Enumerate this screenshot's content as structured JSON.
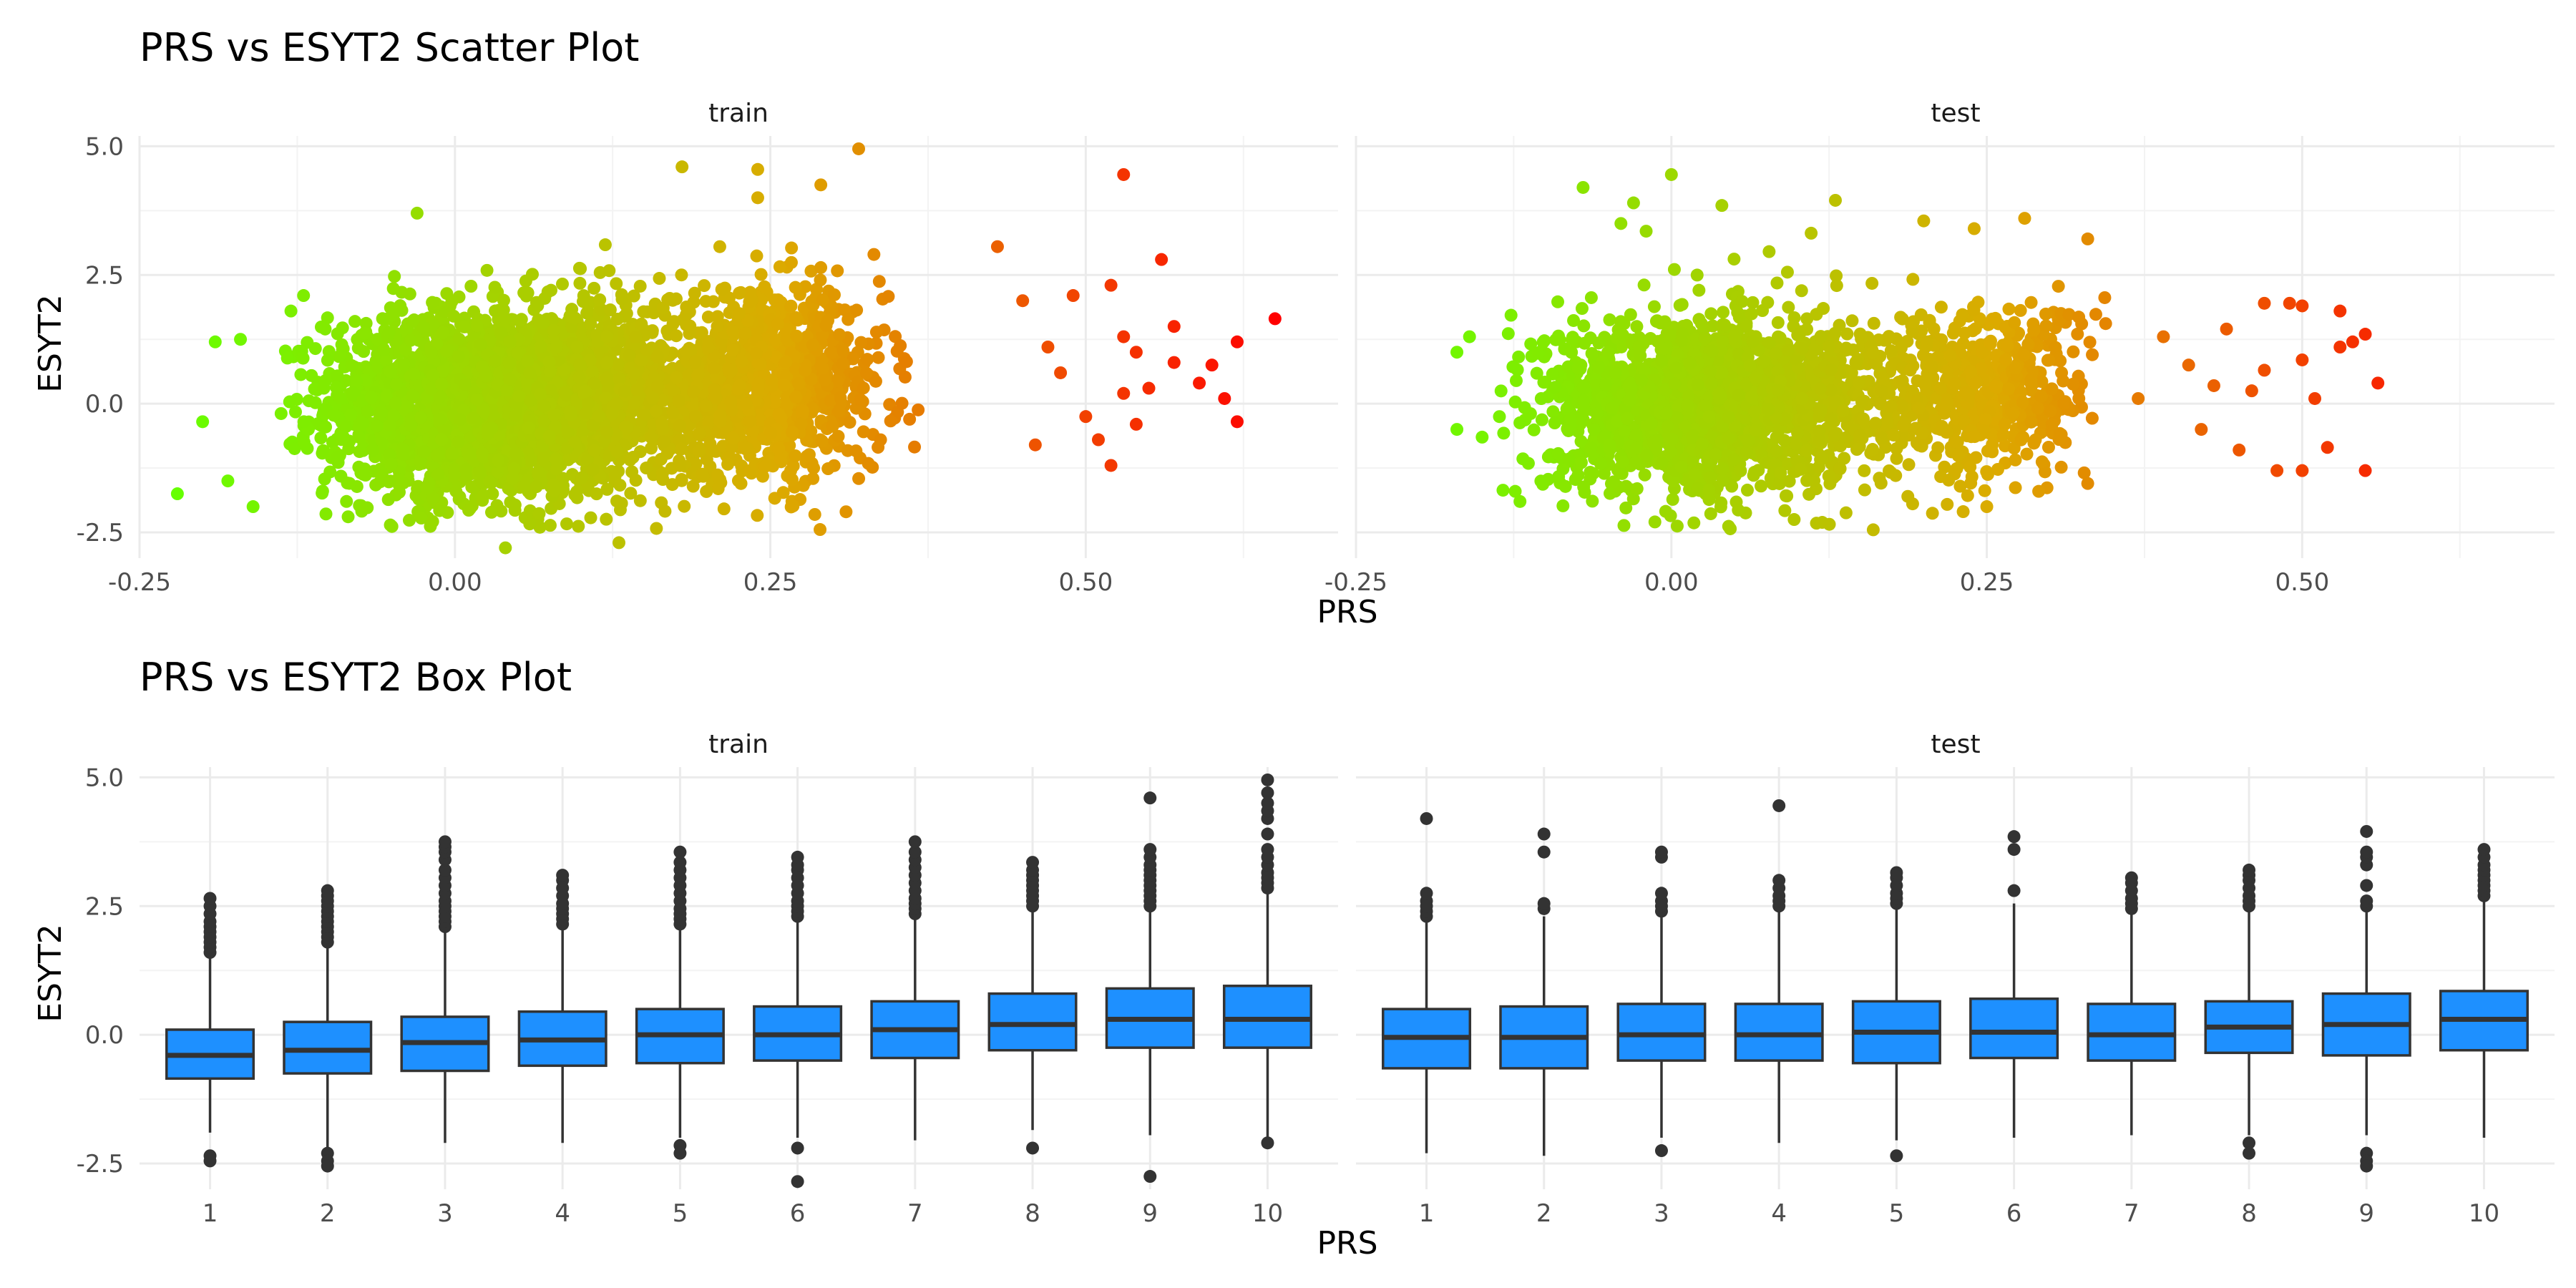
{
  "colors": {
    "low": "#66ff00",
    "high": "#ff0000",
    "box_fill": "#1e90ff",
    "box_line": "#333333",
    "outlier": "#333333"
  },
  "chart_data": [
    {
      "type": "scatter",
      "title": "PRS vs ESYT2 Scatter Plot",
      "xlabel": "PRS",
      "ylabel": "ESYT2",
      "xlim": [
        -0.25,
        0.7
      ],
      "ylim": [
        -3.0,
        5.2
      ],
      "x_ticks": [
        -0.25,
        0.0,
        0.25,
        0.5
      ],
      "x_tick_labels": [
        "-0.25",
        "0.00",
        "0.25",
        "0.50"
      ],
      "y_ticks": [
        -2.5,
        0.0,
        2.5,
        5.0
      ],
      "y_tick_labels": [
        "-2.5",
        "0.0",
        "2.5",
        "5.0"
      ],
      "color_by": "x",
      "color_range": [
        -0.22,
        0.65
      ],
      "facets": [
        {
          "label": "train",
          "cloud": [
            {
              "x_mean": 0.02,
              "x_sd": 0.06,
              "y_mean": 0.0,
              "y_sd": 0.9,
              "n": 2400
            },
            {
              "x_mean": 0.25,
              "x_sd": 0.045,
              "y_mean": 0.35,
              "y_sd": 0.9,
              "n": 900
            },
            {
              "x_mean": 0.13,
              "x_sd": 0.05,
              "y_mean": 0.15,
              "y_sd": 0.9,
              "n": 700
            }
          ],
          "points": [
            {
              "x": -0.22,
              "y": -1.75
            },
            {
              "x": -0.2,
              "y": -0.35
            },
            {
              "x": -0.19,
              "y": 1.2
            },
            {
              "x": -0.18,
              "y": -1.5
            },
            {
              "x": -0.17,
              "y": 1.25
            },
            {
              "x": -0.16,
              "y": -2.0
            },
            {
              "x": -0.13,
              "y": 1.8
            },
            {
              "x": -0.12,
              "y": 2.1
            },
            {
              "x": -0.03,
              "y": 3.7
            },
            {
              "x": 0.04,
              "y": -2.8
            },
            {
              "x": 0.13,
              "y": -2.7
            },
            {
              "x": 0.18,
              "y": 4.6
            },
            {
              "x": 0.24,
              "y": 4.55
            },
            {
              "x": 0.24,
              "y": 4.0
            },
            {
              "x": 0.29,
              "y": 4.25
            },
            {
              "x": 0.32,
              "y": 4.95
            },
            {
              "x": 0.31,
              "y": -2.1
            },
            {
              "x": 0.43,
              "y": 3.05
            },
            {
              "x": 0.45,
              "y": 2.0
            },
            {
              "x": 0.49,
              "y": 2.1
            },
            {
              "x": 0.52,
              "y": 2.3
            },
            {
              "x": 0.53,
              "y": 1.3
            },
            {
              "x": 0.54,
              "y": 1.0
            },
            {
              "x": 0.51,
              "y": -0.7
            },
            {
              "x": 0.52,
              "y": -1.2
            },
            {
              "x": 0.54,
              "y": -0.4
            },
            {
              "x": 0.53,
              "y": 0.2
            },
            {
              "x": 0.55,
              "y": 0.3
            },
            {
              "x": 0.57,
              "y": 1.5
            },
            {
              "x": 0.57,
              "y": 0.8
            },
            {
              "x": 0.56,
              "y": 2.8
            },
            {
              "x": 0.59,
              "y": 0.4
            },
            {
              "x": 0.53,
              "y": 4.45
            },
            {
              "x": 0.6,
              "y": 0.75
            },
            {
              "x": 0.61,
              "y": 0.1
            },
            {
              "x": 0.62,
              "y": -0.35
            },
            {
              "x": 0.62,
              "y": 1.2
            },
            {
              "x": 0.65,
              "y": 1.65
            },
            {
              "x": 0.48,
              "y": 0.6
            },
            {
              "x": 0.5,
              "y": -0.25
            },
            {
              "x": 0.47,
              "y": 1.1
            },
            {
              "x": 0.46,
              "y": -0.8
            }
          ]
        },
        {
          "label": "test",
          "cloud": [
            {
              "x_mean": 0.01,
              "x_sd": 0.055,
              "y_mean": 0.0,
              "y_sd": 0.85,
              "n": 1500
            },
            {
              "x_mean": 0.25,
              "x_sd": 0.04,
              "y_mean": 0.25,
              "y_sd": 0.85,
              "n": 500
            },
            {
              "x_mean": 0.13,
              "x_sd": 0.045,
              "y_mean": 0.1,
              "y_sd": 0.85,
              "n": 400
            }
          ],
          "points": [
            {
              "x": -0.17,
              "y": 1.0
            },
            {
              "x": -0.16,
              "y": 1.3
            },
            {
              "x": -0.17,
              "y": -0.5
            },
            {
              "x": -0.15,
              "y": -0.65
            },
            {
              "x": -0.12,
              "y": -1.9
            },
            {
              "x": -0.07,
              "y": 4.2
            },
            {
              "x": -0.03,
              "y": 3.9
            },
            {
              "x": -0.04,
              "y": 3.5
            },
            {
              "x": -0.02,
              "y": 3.35
            },
            {
              "x": -0.0,
              "y": 4.45
            },
            {
              "x": 0.04,
              "y": 3.85
            },
            {
              "x": 0.13,
              "y": 3.95
            },
            {
              "x": 0.16,
              "y": -2.45
            },
            {
              "x": 0.2,
              "y": 3.55
            },
            {
              "x": 0.24,
              "y": 3.4
            },
            {
              "x": 0.28,
              "y": 3.6
            },
            {
              "x": 0.33,
              "y": 3.2
            },
            {
              "x": 0.25,
              "y": -2.0
            },
            {
              "x": 0.33,
              "y": -1.55
            },
            {
              "x": 0.39,
              "y": 1.3
            },
            {
              "x": 0.41,
              "y": 0.75
            },
            {
              "x": 0.43,
              "y": 0.35
            },
            {
              "x": 0.44,
              "y": 1.45
            },
            {
              "x": 0.45,
              "y": -0.9
            },
            {
              "x": 0.47,
              "y": 1.95
            },
            {
              "x": 0.47,
              "y": 0.65
            },
            {
              "x": 0.48,
              "y": -1.3
            },
            {
              "x": 0.49,
              "y": 1.95
            },
            {
              "x": 0.5,
              "y": -1.3
            },
            {
              "x": 0.5,
              "y": 0.85
            },
            {
              "x": 0.5,
              "y": 1.9
            },
            {
              "x": 0.51,
              "y": 0.1
            },
            {
              "x": 0.52,
              "y": -0.85
            },
            {
              "x": 0.53,
              "y": 1.1
            },
            {
              "x": 0.53,
              "y": 1.8
            },
            {
              "x": 0.54,
              "y": 1.2
            },
            {
              "x": 0.55,
              "y": 1.35
            },
            {
              "x": 0.55,
              "y": -1.3
            },
            {
              "x": 0.56,
              "y": 0.4
            },
            {
              "x": 0.46,
              "y": 0.25
            },
            {
              "x": 0.42,
              "y": -0.5
            },
            {
              "x": 0.37,
              "y": 0.1
            }
          ]
        }
      ]
    },
    {
      "type": "box",
      "title": "PRS vs ESYT2 Box Plot",
      "xlabel": "PRS",
      "ylabel": "ESYT2",
      "ylim": [
        -3.0,
        5.2
      ],
      "y_ticks": [
        -2.5,
        0.0,
        2.5,
        5.0
      ],
      "y_tick_labels": [
        "-2.5",
        "0.0",
        "2.5",
        "5.0"
      ],
      "categories": [
        "1",
        "2",
        "3",
        "4",
        "5",
        "6",
        "7",
        "8",
        "9",
        "10"
      ],
      "facets": [
        {
          "label": "train",
          "boxes": [
            {
              "lower": -1.9,
              "q1": -0.85,
              "median": -0.4,
              "q3": 0.1,
              "upper": 1.55,
              "outliers": [
                1.6,
                1.7,
                1.8,
                1.9,
                2.0,
                2.1,
                2.2,
                2.35,
                2.5,
                2.65,
                -2.35,
                -2.45
              ]
            },
            {
              "lower": -2.2,
              "q1": -0.75,
              "median": -0.3,
              "q3": 0.25,
              "upper": 1.7,
              "outliers": [
                1.8,
                1.9,
                2.0,
                2.1,
                2.2,
                2.3,
                2.4,
                2.5,
                2.6,
                2.7,
                2.8,
                -2.3,
                -2.45,
                -2.55
              ]
            },
            {
              "lower": -2.1,
              "q1": -0.7,
              "median": -0.15,
              "q3": 0.35,
              "upper": 2.0,
              "outliers": [
                2.1,
                2.2,
                2.3,
                2.4,
                2.5,
                2.6,
                2.75,
                2.9,
                3.05,
                3.2,
                3.4,
                3.55,
                3.65,
                3.75
              ]
            },
            {
              "lower": -2.1,
              "q1": -0.6,
              "median": -0.1,
              "q3": 0.45,
              "upper": 2.1,
              "outliers": [
                2.15,
                2.25,
                2.35,
                2.45,
                2.55,
                2.7,
                2.85,
                3.0,
                3.1
              ]
            },
            {
              "lower": -2.0,
              "q1": -0.55,
              "median": 0.0,
              "q3": 0.5,
              "upper": 2.1,
              "outliers": [
                2.15,
                2.25,
                2.35,
                2.45,
                2.6,
                2.75,
                2.9,
                3.05,
                3.2,
                3.35,
                3.55,
                -2.15,
                -2.3
              ]
            },
            {
              "lower": -2.0,
              "q1": -0.5,
              "median": 0.0,
              "q3": 0.55,
              "upper": 2.2,
              "outliers": [
                2.3,
                2.4,
                2.5,
                2.6,
                2.75,
                2.9,
                3.05,
                3.2,
                3.3,
                3.45,
                -2.2,
                -2.85
              ]
            },
            {
              "lower": -2.05,
              "q1": -0.45,
              "median": 0.1,
              "q3": 0.65,
              "upper": 2.3,
              "outliers": [
                2.35,
                2.45,
                2.55,
                2.65,
                2.8,
                2.95,
                3.1,
                3.25,
                3.4,
                3.55,
                3.75
              ]
            },
            {
              "lower": -1.85,
              "q1": -0.3,
              "median": 0.2,
              "q3": 0.8,
              "upper": 2.4,
              "outliers": [
                2.5,
                2.6,
                2.7,
                2.8,
                2.9,
                3.0,
                3.1,
                3.2,
                3.35,
                -2.2
              ]
            },
            {
              "lower": -1.95,
              "q1": -0.25,
              "median": 0.3,
              "q3": 0.9,
              "upper": 2.4,
              "outliers": [
                2.5,
                2.6,
                2.7,
                2.8,
                2.9,
                3.0,
                3.1,
                3.2,
                3.3,
                3.45,
                3.6,
                4.6,
                -2.75
              ]
            },
            {
              "lower": -2.0,
              "q1": -0.25,
              "median": 0.3,
              "q3": 0.95,
              "upper": 2.8,
              "outliers": [
                2.85,
                2.95,
                3.05,
                3.15,
                3.3,
                3.45,
                3.6,
                3.9,
                4.2,
                4.35,
                4.5,
                4.7,
                4.95,
                -2.1
              ]
            }
          ]
        },
        {
          "label": "test",
          "boxes": [
            {
              "lower": -2.3,
              "q1": -0.65,
              "median": -0.05,
              "q3": 0.5,
              "upper": 2.2,
              "outliers": [
                2.3,
                2.4,
                2.5,
                2.6,
                2.75,
                4.2
              ]
            },
            {
              "lower": -2.35,
              "q1": -0.65,
              "median": -0.05,
              "q3": 0.55,
              "upper": 2.3,
              "outliers": [
                2.45,
                2.55,
                3.55,
                3.9
              ]
            },
            {
              "lower": -2.0,
              "q1": -0.5,
              "median": 0.0,
              "q3": 0.6,
              "upper": 2.3,
              "outliers": [
                2.4,
                2.5,
                2.6,
                2.75,
                3.45,
                3.55,
                -2.25
              ]
            },
            {
              "lower": -2.1,
              "q1": -0.5,
              "median": 0.0,
              "q3": 0.6,
              "upper": 2.4,
              "outliers": [
                2.5,
                2.6,
                2.7,
                2.85,
                3.0,
                4.45
              ]
            },
            {
              "lower": -2.05,
              "q1": -0.55,
              "median": 0.05,
              "q3": 0.65,
              "upper": 2.45,
              "outliers": [
                2.55,
                2.65,
                2.75,
                2.9,
                3.05,
                3.15,
                -2.35
              ]
            },
            {
              "lower": -2.0,
              "q1": -0.45,
              "median": 0.05,
              "q3": 0.7,
              "upper": 2.55,
              "outliers": [
                2.8,
                3.6,
                3.85
              ]
            },
            {
              "lower": -1.95,
              "q1": -0.5,
              "median": 0.0,
              "q3": 0.6,
              "upper": 2.35,
              "outliers": [
                2.45,
                2.55,
                2.65,
                2.8,
                2.95,
                3.05
              ]
            },
            {
              "lower": -1.95,
              "q1": -0.35,
              "median": 0.15,
              "q3": 0.65,
              "upper": 2.4,
              "outliers": [
                2.5,
                2.6,
                2.7,
                2.85,
                3.0,
                3.1,
                3.2,
                -2.1,
                -2.3
              ]
            },
            {
              "lower": -1.95,
              "q1": -0.4,
              "median": 0.2,
              "q3": 0.8,
              "upper": 2.4,
              "outliers": [
                2.5,
                2.6,
                2.9,
                3.3,
                3.45,
                3.55,
                3.95,
                -2.3,
                -2.45,
                -2.55
              ]
            },
            {
              "lower": -2.0,
              "q1": -0.3,
              "median": 0.3,
              "q3": 0.85,
              "upper": 2.6,
              "outliers": [
                2.7,
                2.8,
                2.9,
                3.0,
                3.1,
                3.2,
                3.3,
                3.45,
                3.6
              ]
            }
          ]
        }
      ]
    }
  ]
}
